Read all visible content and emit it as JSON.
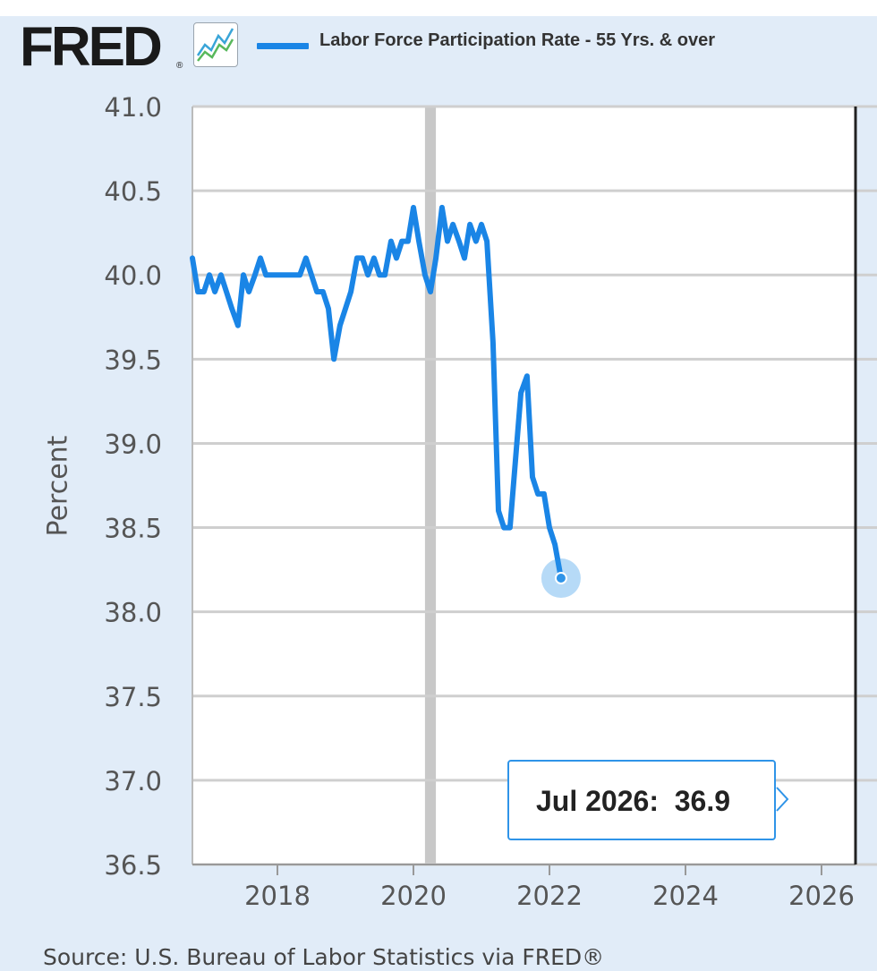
{
  "header": {
    "logo_text": "FRED",
    "logo_mark": "®",
    "graph_icon": "line-graph-icon",
    "legend_label": "Labor Force Participation Rate - 55 Yrs. & over",
    "legend_color": "#1a85e6"
  },
  "tooltip": {
    "date": "Jul 2026:",
    "value": "36.9"
  },
  "footer": {
    "source": "Source: U.S. Bureau of Labor Statistics via FRED®"
  },
  "chart_data": {
    "type": "line",
    "ylabel": "Percent",
    "xlabel": "",
    "ylim": [
      36.5,
      41.0
    ],
    "xlim": [
      2016.75,
      2026.5
    ],
    "yticks": [
      "41.0",
      "40.5",
      "40.0",
      "39.5",
      "39.0",
      "38.5",
      "38.0",
      "37.5",
      "37.0",
      "36.5"
    ],
    "xticks": [
      "2018",
      "2020",
      "2022",
      "2024",
      "2026"
    ],
    "grid": true,
    "recession_shading": [
      2020.17,
      2020.33
    ],
    "series": [
      {
        "name": "Labor Force Participation Rate - 55 Yrs. & over",
        "color": "#1a85e6",
        "segments": [
          [
            [
              2016.75,
              40.1
            ],
            [
              2016.83,
              39.9
            ],
            [
              2016.92,
              39.9
            ],
            [
              2017.0,
              40.0
            ],
            [
              2017.08,
              39.9
            ],
            [
              2017.17,
              40.0
            ],
            [
              2017.25,
              39.9
            ],
            [
              2017.33,
              39.8
            ],
            [
              2017.42,
              39.7
            ],
            [
              2017.5,
              40.0
            ],
            [
              2017.58,
              39.9
            ],
            [
              2017.67,
              40.0
            ],
            [
              2017.75,
              40.1
            ],
            [
              2017.83,
              40.0
            ],
            [
              2017.92,
              40.0
            ],
            [
              2018.0,
              40.0
            ],
            [
              2018.08,
              40.0
            ],
            [
              2018.17,
              40.0
            ],
            [
              2018.25,
              40.0
            ],
            [
              2018.33,
              40.0
            ],
            [
              2018.42,
              40.1
            ],
            [
              2018.5,
              40.0
            ],
            [
              2018.58,
              39.9
            ],
            [
              2018.67,
              39.9
            ],
            [
              2018.75,
              39.8
            ],
            [
              2018.83,
              39.5
            ],
            [
              2018.92,
              39.7
            ],
            [
              2019.0,
              39.8
            ],
            [
              2019.08,
              39.9
            ],
            [
              2019.17,
              40.1
            ],
            [
              2019.25,
              40.1
            ],
            [
              2019.33,
              40.0
            ],
            [
              2019.42,
              40.1
            ],
            [
              2019.5,
              40.0
            ],
            [
              2019.58,
              40.0
            ],
            [
              2019.67,
              40.2
            ],
            [
              2019.75,
              40.1
            ],
            [
              2019.83,
              40.2
            ],
            [
              2019.92,
              40.2
            ],
            [
              2020.0,
              40.4
            ],
            [
              2020.08,
              40.2
            ],
            [
              2020.17,
              40.0
            ],
            [
              2020.25,
              39.9
            ],
            [
              2020.33,
              40.1
            ],
            [
              2020.42,
              40.4
            ],
            [
              2020.5,
              40.2
            ],
            [
              2020.58,
              40.3
            ],
            [
              2020.67,
              40.2
            ],
            [
              2020.75,
              40.1
            ],
            [
              2020.83,
              40.3
            ],
            [
              2020.92,
              40.2
            ],
            [
              2021.0,
              40.3
            ],
            [
              2021.08,
              40.2
            ],
            [
              2021.17,
              39.6
            ],
            [
              2021.25,
              38.6
            ],
            [
              2021.33,
              38.5
            ],
            [
              2021.42,
              38.5
            ],
            [
              2021.5,
              38.9
            ],
            [
              2021.58,
              39.3
            ],
            [
              2021.67,
              39.4
            ],
            [
              2021.75,
              38.8
            ],
            [
              2021.83,
              38.7
            ],
            [
              2021.92,
              38.7
            ],
            [
              2022.0,
              38.5
            ],
            [
              2022.08,
              38.4
            ],
            [
              2022.17,
              38.2
            ]
          ]
        ]
      }
    ]
  }
}
